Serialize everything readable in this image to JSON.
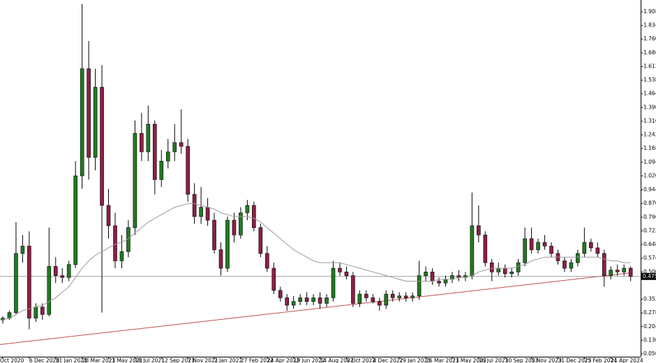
{
  "chart_data": {
    "type": "candlestick",
    "categories": [
      "Oct 2020",
      null,
      null,
      null,
      "6 Dec 2020",
      null,
      null,
      null,
      "31 Jan 2021",
      null,
      null,
      null,
      "28 Mar 2021",
      null,
      null,
      null,
      "23 May 2021",
      null,
      null,
      null,
      "18 Jul 2021",
      null,
      null,
      null,
      "12 Sep 2021",
      null,
      null,
      null,
      "7 Nov 2021",
      null,
      null,
      null,
      "2 Jan 2022",
      null,
      null,
      null,
      "27 Feb 2022",
      null,
      null,
      null,
      "24 Apr 2022",
      null,
      null,
      null,
      "19 Jun 2022",
      null,
      null,
      null,
      "14 Aug 2022",
      null,
      null,
      null,
      "9 Oct 2022",
      null,
      null,
      null,
      "4 Dec 2022",
      null,
      null,
      null,
      "29 Jan 2023",
      null,
      null,
      null,
      "26 Mar 2023",
      null,
      null,
      null,
      "21 May 2023",
      null,
      null,
      null,
      "16 Jul 2023",
      null,
      null,
      null,
      "10 Sep 2023",
      null,
      null,
      null,
      "5 Nov 2023",
      null,
      null,
      null,
      "31 Dec 2023",
      null,
      null,
      null,
      "25 Feb 2024",
      null,
      null,
      null,
      "21 Apr 2024",
      null,
      null,
      null
    ],
    "open": [
      0.24,
      0.25,
      0.28,
      0.6,
      0.64,
      0.25,
      0.31,
      0.27,
      0.53,
      0.48,
      0.47,
      0.54,
      1.02,
      1.6,
      1.12,
      1.5,
      0.86,
      0.75,
      0.56,
      0.61,
      0.74,
      1.25,
      1.15,
      1.3,
      1.0,
      1.1,
      1.15,
      1.2,
      1.18,
      0.92,
      0.8,
      0.85,
      0.78,
      0.62,
      0.52,
      0.78,
      0.7,
      0.82,
      0.86,
      0.74,
      0.6,
      0.52,
      0.4,
      0.36,
      0.32,
      0.34,
      0.36,
      0.34,
      0.36,
      0.33,
      0.36,
      0.52,
      0.5,
      0.48,
      0.33,
      0.38,
      0.36,
      0.34,
      0.32,
      0.38,
      0.36,
      0.37,
      0.36,
      0.37,
      0.48,
      0.5,
      0.45,
      0.44,
      0.46,
      0.48,
      0.47,
      0.48,
      0.75,
      0.7,
      0.55,
      0.5,
      0.52,
      0.49,
      0.5,
      0.55,
      0.68,
      0.62,
      0.66,
      0.64,
      0.6,
      0.56,
      0.52,
      0.55,
      0.6,
      0.66,
      0.63,
      0.6,
      0.48,
      0.51,
      0.5,
      0.52
    ],
    "high": [
      0.26,
      0.29,
      0.77,
      0.7,
      0.72,
      0.33,
      0.33,
      0.74,
      0.58,
      0.52,
      0.56,
      1.1,
      1.95,
      1.75,
      1.6,
      1.62,
      0.95,
      0.82,
      0.7,
      0.78,
      1.32,
      1.36,
      1.4,
      1.32,
      1.16,
      1.22,
      1.3,
      1.38,
      1.22,
      0.98,
      0.96,
      0.9,
      0.82,
      0.66,
      0.8,
      0.82,
      0.85,
      0.89,
      0.88,
      0.76,
      0.64,
      0.55,
      0.42,
      0.38,
      0.37,
      0.38,
      0.39,
      0.38,
      0.39,
      0.38,
      0.56,
      0.55,
      0.53,
      0.5,
      0.4,
      0.4,
      0.38,
      0.36,
      0.4,
      0.4,
      0.39,
      0.39,
      0.39,
      0.56,
      0.53,
      0.52,
      0.47,
      0.48,
      0.5,
      0.51,
      0.5,
      0.93,
      0.86,
      0.72,
      0.57,
      0.55,
      0.54,
      0.52,
      0.57,
      0.74,
      0.74,
      0.68,
      0.7,
      0.66,
      0.62,
      0.58,
      0.57,
      0.62,
      0.74,
      0.68,
      0.66,
      0.62,
      0.53,
      0.54,
      0.54,
      0.53
    ],
    "low": [
      0.22,
      0.24,
      0.27,
      0.55,
      0.19,
      0.23,
      0.24,
      0.26,
      0.44,
      0.44,
      0.45,
      0.52,
      0.95,
      1.0,
      1.05,
      0.28,
      0.68,
      0.52,
      0.52,
      0.58,
      0.7,
      1.1,
      1.1,
      0.92,
      0.96,
      1.06,
      1.1,
      1.14,
      0.88,
      0.76,
      0.76,
      0.75,
      0.6,
      0.48,
      0.5,
      0.66,
      0.68,
      0.78,
      0.72,
      0.58,
      0.5,
      0.38,
      0.34,
      0.29,
      0.3,
      0.32,
      0.32,
      0.32,
      0.3,
      0.31,
      0.34,
      0.48,
      0.46,
      0.31,
      0.31,
      0.34,
      0.33,
      0.29,
      0.3,
      0.34,
      0.34,
      0.34,
      0.34,
      0.35,
      0.45,
      0.43,
      0.42,
      0.42,
      0.44,
      0.45,
      0.45,
      0.46,
      0.66,
      0.53,
      0.45,
      0.48,
      0.47,
      0.47,
      0.48,
      0.53,
      0.6,
      0.6,
      0.62,
      0.58,
      0.54,
      0.5,
      0.5,
      0.53,
      0.58,
      0.61,
      0.58,
      0.42,
      0.46,
      0.48,
      0.48,
      0.45
    ],
    "close": [
      0.25,
      0.28,
      0.6,
      0.64,
      0.25,
      0.31,
      0.27,
      0.53,
      0.48,
      0.47,
      0.54,
      1.02,
      1.6,
      1.12,
      1.5,
      0.86,
      0.75,
      0.56,
      0.61,
      0.74,
      1.25,
      1.15,
      1.3,
      1.0,
      1.1,
      1.15,
      1.2,
      1.18,
      0.92,
      0.8,
      0.85,
      0.78,
      0.62,
      0.52,
      0.78,
      0.7,
      0.82,
      0.86,
      0.74,
      0.6,
      0.52,
      0.4,
      0.36,
      0.32,
      0.34,
      0.36,
      0.34,
      0.36,
      0.33,
      0.36,
      0.52,
      0.5,
      0.48,
      0.33,
      0.38,
      0.36,
      0.34,
      0.32,
      0.38,
      0.36,
      0.37,
      0.36,
      0.37,
      0.48,
      0.5,
      0.45,
      0.44,
      0.46,
      0.48,
      0.47,
      0.48,
      0.75,
      0.7,
      0.55,
      0.5,
      0.52,
      0.49,
      0.5,
      0.55,
      0.68,
      0.62,
      0.66,
      0.64,
      0.6,
      0.56,
      0.52,
      0.55,
      0.6,
      0.66,
      0.63,
      0.6,
      0.48,
      0.51,
      0.5,
      0.52,
      0.4756
    ],
    "up_color": "#217a21",
    "down_color": "#8e1f45",
    "ma": {
      "color": "#9a9a9a",
      "values": [
        0.24,
        0.25,
        0.27,
        0.29,
        0.3,
        0.31,
        0.32,
        0.34,
        0.36,
        0.39,
        0.42,
        0.47,
        0.52,
        0.56,
        0.59,
        0.61,
        0.63,
        0.65,
        0.66,
        0.68,
        0.71,
        0.74,
        0.77,
        0.79,
        0.81,
        0.83,
        0.85,
        0.86,
        0.87,
        0.87,
        0.86,
        0.85,
        0.84,
        0.82,
        0.81,
        0.8,
        0.8,
        0.8,
        0.79,
        0.77,
        0.74,
        0.71,
        0.68,
        0.65,
        0.62,
        0.6,
        0.58,
        0.56,
        0.55,
        0.55,
        0.55,
        0.55,
        0.54,
        0.53,
        0.52,
        0.51,
        0.5,
        0.49,
        0.48,
        0.47,
        0.46,
        0.45,
        0.45,
        0.45,
        0.45,
        0.45,
        0.46,
        0.46,
        0.46,
        0.47,
        0.47,
        0.48,
        0.5,
        0.51,
        0.52,
        0.52,
        0.52,
        0.52,
        0.53,
        0.54,
        0.56,
        0.57,
        0.58,
        0.58,
        0.58,
        0.58,
        0.58,
        0.58,
        0.58,
        0.58,
        0.58,
        0.57,
        0.56,
        0.56,
        0.55,
        0.55
      ]
    },
    "trendline": {
      "color": "#c0504d",
      "values": [
        0.107,
        0.495
      ]
    },
    "current_price": {
      "value": 0.4756,
      "label": "0.4756",
      "color": "#808080"
    },
    "ylim": [
      0.041,
      1.972
    ],
    "yticks": [
      {
        "value": 1.908,
        "label": "1.9080"
      },
      {
        "value": 1.834,
        "label": "1.8340"
      },
      {
        "value": 1.76,
        "label": "1.7600"
      },
      {
        "value": 1.686,
        "label": "1.6860"
      },
      {
        "value": 1.612,
        "label": "1.6120"
      },
      {
        "value": 1.538,
        "label": "1.5380"
      },
      {
        "value": 1.464,
        "label": "1.4640"
      },
      {
        "value": 1.39,
        "label": "1.3900"
      },
      {
        "value": 1.316,
        "label": "1.3160"
      },
      {
        "value": 1.242,
        "label": "1.2420"
      },
      {
        "value": 1.168,
        "label": "1.1680"
      },
      {
        "value": 1.094,
        "label": "1.0940"
      },
      {
        "value": 1.02,
        "label": "1.0200"
      },
      {
        "value": 0.944,
        "label": "0.9440"
      },
      {
        "value": 0.87,
        "label": "0.8700"
      },
      {
        "value": 0.796,
        "label": "0.7960"
      },
      {
        "value": 0.722,
        "label": "0.7220"
      },
      {
        "value": 0.648,
        "label": "0.6480"
      },
      {
        "value": 0.574,
        "label": "0.5740"
      },
      {
        "value": 0.5,
        "label": "0.5000"
      },
      {
        "value": 0.352,
        "label": "0.3520"
      },
      {
        "value": 0.278,
        "label": "0.2780"
      },
      {
        "value": 0.204,
        "label": "0.2040"
      },
      {
        "value": 0.13,
        "label": "0.1300"
      },
      {
        "value": 0.056,
        "label": "0.0560"
      }
    ]
  }
}
